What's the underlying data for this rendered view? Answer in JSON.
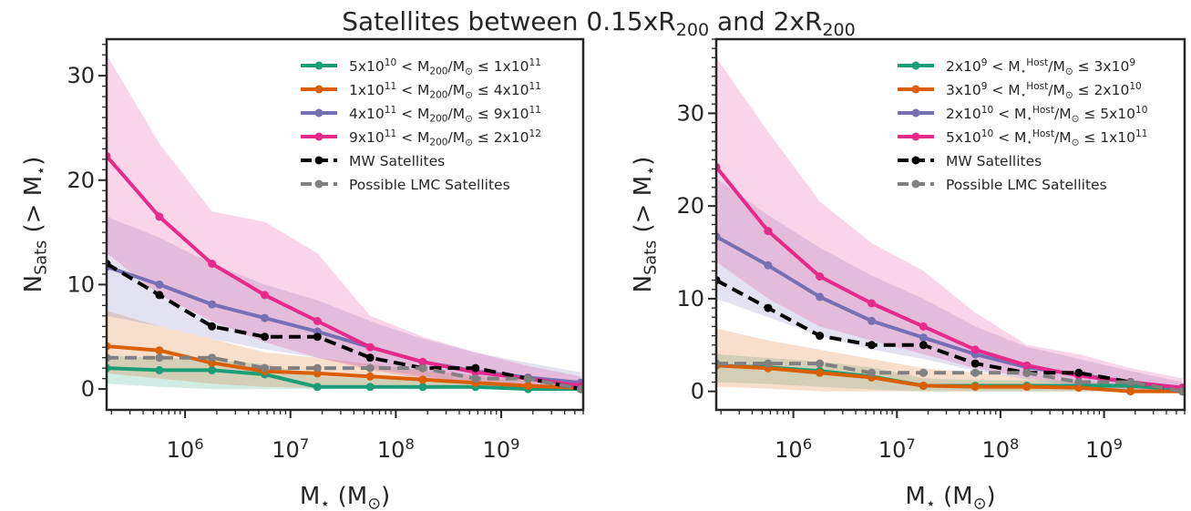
{
  "figure": {
    "title": "Satellites between 0.15xR$_{200}$ and 2xR$_{200}$"
  },
  "colors": {
    "green": "#1b9e77",
    "orange": "#d95f02",
    "purple": "#7570b3",
    "pink": "#e7298a",
    "mw": "#000000",
    "lmc": "#808080"
  },
  "chart_data": [
    {
      "type": "line",
      "panel": "left",
      "xlabel": "M$_{\\star}$ (M$_{\\odot}$)",
      "ylabel": "N$_{\\rm Sats}$ (> M$_{\\star}$)",
      "xscale": "log",
      "xlim": [
        180000,
        6000000000
      ],
      "ylim": [
        -2,
        33.5
      ],
      "xticks": [
        {
          "value": 1000000,
          "label": "10$^{6}$"
        },
        {
          "value": 10000000,
          "label": "10$^{7}$"
        },
        {
          "value": 100000000,
          "label": "10$^{8}$"
        },
        {
          "value": 1000000000,
          "label": "10$^{9}$"
        }
      ],
      "yticks": [
        0,
        10,
        20,
        30
      ],
      "legend_position": "upper right",
      "x": [
        180000,
        570000,
        1800000,
        5700000,
        18000000,
        57000000,
        180000000,
        570000000,
        1800000000,
        5700000000
      ],
      "series": [
        {
          "name": "5x10$^{10}$ < M$_{200}$/M$_{\\odot}$ ≤ 1x10$^{11}$",
          "color": "green",
          "values": [
            2.0,
            1.8,
            1.8,
            1.4,
            0.2,
            0.2,
            0.2,
            0.2,
            0.0,
            0.0
          ],
          "band_low": [
            0.5,
            0.2,
            0.0,
            0.0,
            0.0,
            0.0,
            0.0,
            0.0,
            0.0,
            0.0
          ],
          "band_high": [
            3.2,
            3.0,
            2.8,
            2.4,
            1.2,
            1.0,
            0.8,
            0.6,
            0.4,
            0.2
          ]
        },
        {
          "name": "1x10$^{11}$ < M$_{200}$/M$_{\\odot}$ ≤ 4x10$^{11}$",
          "color": "orange",
          "values": [
            4.1,
            3.7,
            2.5,
            1.7,
            1.5,
            1.2,
            0.9,
            0.6,
            0.3,
            0.1
          ],
          "band_low": [
            1.5,
            1.0,
            0.5,
            0.2,
            0.1,
            0.1,
            0.0,
            0.0,
            0.0,
            0.0
          ],
          "band_high": [
            7.5,
            6.0,
            4.8,
            3.5,
            3.0,
            2.4,
            1.8,
            1.3,
            0.8,
            0.4
          ]
        },
        {
          "name": "4x10$^{11}$ < M$_{200}$/M$_{\\odot}$ ≤ 9x10$^{11}$",
          "color": "purple",
          "values": [
            11.7,
            10.0,
            8.1,
            6.8,
            5.5,
            4.0,
            2.6,
            1.7,
            1.1,
            0.6
          ],
          "band_low": [
            7.0,
            6.0,
            4.8,
            3.8,
            3.0,
            2.0,
            1.2,
            0.6,
            0.2,
            0.0
          ],
          "band_high": [
            16.5,
            14.5,
            12.0,
            10.0,
            8.5,
            6.5,
            4.8,
            3.5,
            2.5,
            1.6
          ]
        },
        {
          "name": "9x10$^{11}$ < M$_{200}$/M$_{\\odot}$ ≤ 2x10$^{12}$",
          "color": "pink",
          "values": [
            22.3,
            16.5,
            12.0,
            9.0,
            6.5,
            4.0,
            2.6,
            1.6,
            1.0,
            0.3
          ],
          "band_low": [
            13.0,
            9.0,
            6.5,
            4.5,
            3.0,
            1.8,
            1.0,
            0.5,
            0.2,
            0.0
          ],
          "band_high": [
            32.0,
            23.5,
            17.0,
            16.0,
            13.0,
            7.0,
            5.0,
            3.5,
            2.2,
            1.2
          ]
        },
        {
          "name": "MW Satellites",
          "color": "mw",
          "dashed": true,
          "values": [
            12.0,
            9.0,
            6.0,
            5.0,
            5.0,
            3.0,
            2.0,
            2.0,
            1.0,
            0.0
          ]
        },
        {
          "name": "Possible LMC Satellites",
          "color": "lmc",
          "dashed": true,
          "values": [
            3.0,
            3.0,
            3.0,
            2.0,
            2.0,
            2.0,
            2.0,
            1.0,
            1.0,
            0.0
          ]
        }
      ]
    },
    {
      "type": "line",
      "panel": "right",
      "xlabel": "M$_{\\star}$ (M$_{\\odot}$)",
      "ylabel": "N$_{\\rm Sats}$ (> M$_{\\star}$)",
      "xscale": "log",
      "xlim": [
        180000,
        6000000000
      ],
      "ylim": [
        -2,
        38
      ],
      "xticks": [
        {
          "value": 1000000,
          "label": "10$^{6}$"
        },
        {
          "value": 10000000,
          "label": "10$^{7}$"
        },
        {
          "value": 100000000,
          "label": "10$^{8}$"
        },
        {
          "value": 1000000000,
          "label": "10$^{9}$"
        }
      ],
      "yticks": [
        0,
        10,
        20,
        30
      ],
      "legend_position": "upper right",
      "x": [
        180000,
        570000,
        1800000,
        5700000,
        18000000,
        57000000,
        180000000,
        570000000,
        1800000000,
        5700000000
      ],
      "series": [
        {
          "name": "2x10$^{9}$ < M$_{\\star}^{\\rm Host}$/M$_{\\odot}$ ≤ 3x10$^{9}$",
          "color": "green",
          "values": [
            2.8,
            2.6,
            2.2,
            1.6,
            0.6,
            0.6,
            0.6,
            0.6,
            0.6,
            0.2
          ],
          "band_low": [
            1.0,
            0.8,
            0.5,
            0.2,
            0.0,
            0.0,
            0.0,
            0.0,
            0.0,
            0.0
          ],
          "band_high": [
            4.0,
            3.6,
            3.2,
            2.6,
            1.4,
            1.2,
            1.2,
            1.0,
            0.8,
            0.4
          ]
        },
        {
          "name": "3x10$^{9}$ < M$_{\\star}^{\\rm Host}$/M$_{\\odot}$ ≤ 2x10$^{10}$",
          "color": "orange",
          "values": [
            2.8,
            2.5,
            2.0,
            1.5,
            0.6,
            0.5,
            0.5,
            0.4,
            0.0,
            0.0
          ],
          "band_low": [
            0.5,
            0.3,
            0.0,
            0.0,
            0.0,
            0.0,
            0.0,
            0.0,
            0.0,
            0.0
          ],
          "band_high": [
            6.8,
            5.5,
            4.5,
            3.5,
            2.5,
            2.0,
            1.5,
            1.0,
            0.5,
            0.2
          ]
        },
        {
          "name": "2x10$^{10}$ < M$_{\\star}^{\\rm Host}$/M$_{\\odot}$ ≤ 5x10$^{10}$",
          "color": "purple",
          "values": [
            16.7,
            13.6,
            10.2,
            7.6,
            5.8,
            4.0,
            2.6,
            1.8,
            1.0,
            0.3
          ],
          "band_low": [
            10.0,
            8.0,
            6.0,
            4.5,
            3.5,
            2.2,
            1.3,
            0.6,
            0.2,
            0.0
          ],
          "band_high": [
            23.0,
            19.0,
            15.5,
            12.5,
            10.0,
            7.0,
            4.8,
            3.5,
            2.2,
            1.0
          ]
        },
        {
          "name": "5x10$^{10}$ < M$_{\\star}^{\\rm Host}$/M$_{\\odot}$ ≤ 1x10$^{11}$",
          "color": "pink",
          "values": [
            24.2,
            17.3,
            12.4,
            9.5,
            7.0,
            4.5,
            2.8,
            1.7,
            1.0,
            0.4
          ],
          "band_low": [
            14.0,
            10.0,
            7.0,
            5.5,
            4.0,
            2.5,
            1.5,
            0.8,
            0.3,
            0.0
          ],
          "band_high": [
            36.0,
            28.0,
            20.5,
            16.0,
            13.0,
            8.5,
            5.0,
            4.0,
            2.5,
            1.4
          ]
        },
        {
          "name": "MW Satellites",
          "color": "mw",
          "dashed": true,
          "values": [
            12.0,
            9.0,
            6.0,
            5.0,
            5.0,
            3.0,
            2.0,
            2.0,
            1.0,
            0.0
          ]
        },
        {
          "name": "Possible LMC Satellites",
          "color": "lmc",
          "dashed": true,
          "values": [
            3.0,
            3.0,
            3.0,
            2.0,
            2.0,
            2.0,
            2.0,
            1.0,
            1.0,
            0.0
          ]
        }
      ]
    }
  ]
}
